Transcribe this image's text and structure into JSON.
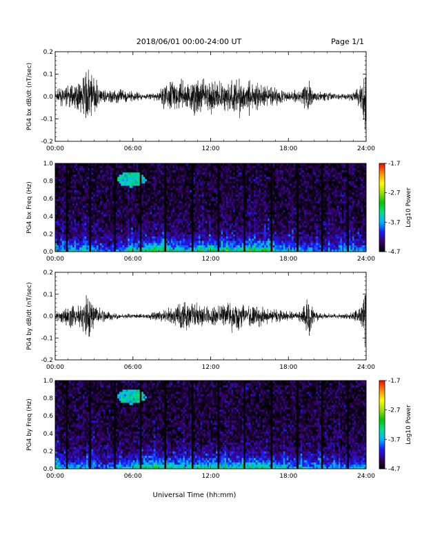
{
  "header": {
    "title": "2018/06/01   00:00-24:00 UT",
    "page": "Page 1/1"
  },
  "xlabel": "Universal Time (hh:mm)",
  "colors": {
    "trace": "#000000",
    "colormap": [
      "#000000",
      "#3a006e",
      "#1a1aff",
      "#00b4ff",
      "#00e08c",
      "#00c800",
      "#a0e000",
      "#ffff00",
      "#ff8c00",
      "#ff0000"
    ]
  },
  "chart_data": [
    {
      "type": "line",
      "id": "bx-dbdt",
      "ylabel": "PG4 bx dB/dt (nT/sec)",
      "xticks": [
        "00:00",
        "06:00",
        "12:00",
        "18:00",
        "24:00"
      ],
      "yticks": [
        "0.2",
        "0.1",
        "0.0",
        "-0.1",
        "-0.2"
      ],
      "xlim": [
        0,
        24
      ],
      "ylim": [
        -0.2,
        0.2
      ],
      "envelope": {
        "hours": [
          0,
          1,
          2,
          2.5,
          3,
          3.5,
          4,
          5,
          6,
          7,
          8,
          8.5,
          9,
          10,
          11,
          12,
          13,
          14,
          15,
          16,
          17,
          18,
          19,
          19.5,
          20,
          21,
          22,
          23,
          23.7,
          24
        ],
        "amplitude": [
          0.02,
          0.05,
          0.06,
          0.13,
          0.07,
          0.04,
          0.03,
          0.03,
          0.02,
          0.01,
          0.02,
          0.06,
          0.07,
          0.05,
          0.09,
          0.06,
          0.07,
          0.08,
          0.07,
          0.05,
          0.04,
          0.02,
          0.03,
          0.08,
          0.02,
          0.02,
          0.01,
          0.02,
          0.06,
          0.2
        ]
      }
    },
    {
      "type": "heatmap",
      "id": "bx-freq",
      "ylabel": "PG4 bx Freq (Hz)",
      "xticks": [
        "00:00",
        "06:00",
        "12:00",
        "18:00",
        "24:00"
      ],
      "yticks": [
        "1.0",
        "0.8",
        "0.6",
        "0.4",
        "0.2",
        "0.0"
      ],
      "xlim": [
        0,
        24
      ],
      "ylim": [
        0.0,
        1.0
      ],
      "colorbar": {
        "label": "Log10 Power",
        "ticks": [
          "-1.7",
          "-2.7",
          "-3.7",
          "-4.7"
        ],
        "range": [
          -4.7,
          -1.7
        ]
      },
      "dark_stripes_hours": [
        0.9,
        2.7,
        4.6,
        6.6,
        8.5,
        10.6,
        12.6,
        14.6,
        16.7,
        18.7,
        20.6,
        22.6
      ],
      "blob": {
        "hour": 5.9,
        "freq": 0.82
      },
      "low_freq_power_by_hour": {
        "hours": [
          0,
          2,
          4,
          6,
          8,
          10,
          12,
          14,
          16,
          18,
          20,
          22,
          24
        ],
        "log_power": [
          -3.6,
          -3.5,
          -3.8,
          -3.4,
          -2.9,
          -3.4,
          -3.2,
          -3.2,
          -3.0,
          -3.6,
          -3.7,
          -3.8,
          -3.6
        ]
      }
    },
    {
      "type": "line",
      "id": "by-dbdt",
      "ylabel": "PG4 by dB/dt (nT/sec)",
      "xticks": [
        "00:00",
        "06:00",
        "12:00",
        "18:00",
        "24:00"
      ],
      "yticks": [
        "0.2",
        "0.1",
        "0.0",
        "-0.1",
        "-0.2"
      ],
      "xlim": [
        0,
        24
      ],
      "ylim": [
        -0.2,
        0.2
      ],
      "envelope": {
        "hours": [
          0,
          1,
          2,
          2.5,
          3,
          3.5,
          4,
          5,
          6,
          7,
          8,
          9,
          10,
          11,
          12,
          13,
          14,
          15,
          16,
          17,
          18,
          19,
          19.5,
          20,
          21,
          22,
          23,
          23.7,
          24
        ],
        "amplitude": [
          0.02,
          0.04,
          0.05,
          0.11,
          0.05,
          0.03,
          0.02,
          0.01,
          0.01,
          0.01,
          0.02,
          0.04,
          0.06,
          0.05,
          0.04,
          0.05,
          0.07,
          0.05,
          0.04,
          0.03,
          0.02,
          0.02,
          0.1,
          0.02,
          0.01,
          0.01,
          0.02,
          0.05,
          0.16
        ]
      }
    },
    {
      "type": "heatmap",
      "id": "by-freq",
      "ylabel": "PG4 by Freq (Hz)",
      "xticks": [
        "00:00",
        "06:00",
        "12:00",
        "18:00",
        "24:00"
      ],
      "yticks": [
        "1.0",
        "0.8",
        "0.6",
        "0.4",
        "0.2",
        "0.0"
      ],
      "xlim": [
        0,
        24
      ],
      "ylim": [
        0.0,
        1.0
      ],
      "colorbar": {
        "label": "Log10 Power",
        "ticks": [
          "-1.7",
          "-2.7",
          "-3.7",
          "-4.7"
        ],
        "range": [
          -4.7,
          -1.7
        ]
      },
      "dark_stripes_hours": [
        0.9,
        2.7,
        4.6,
        6.6,
        8.5,
        10.6,
        12.6,
        14.6,
        16.7,
        18.7,
        20.6,
        22.6
      ],
      "blob": {
        "hour": 5.9,
        "freq": 0.82
      },
      "low_freq_power_by_hour": {
        "hours": [
          0,
          2,
          4,
          6,
          8,
          10,
          12,
          14,
          16,
          18,
          20,
          22,
          24
        ],
        "log_power": [
          -3.5,
          -3.6,
          -3.8,
          -3.4,
          -3.0,
          -3.3,
          -3.2,
          -3.3,
          -3.1,
          -3.5,
          -3.6,
          -3.8,
          -3.5
        ]
      }
    }
  ]
}
